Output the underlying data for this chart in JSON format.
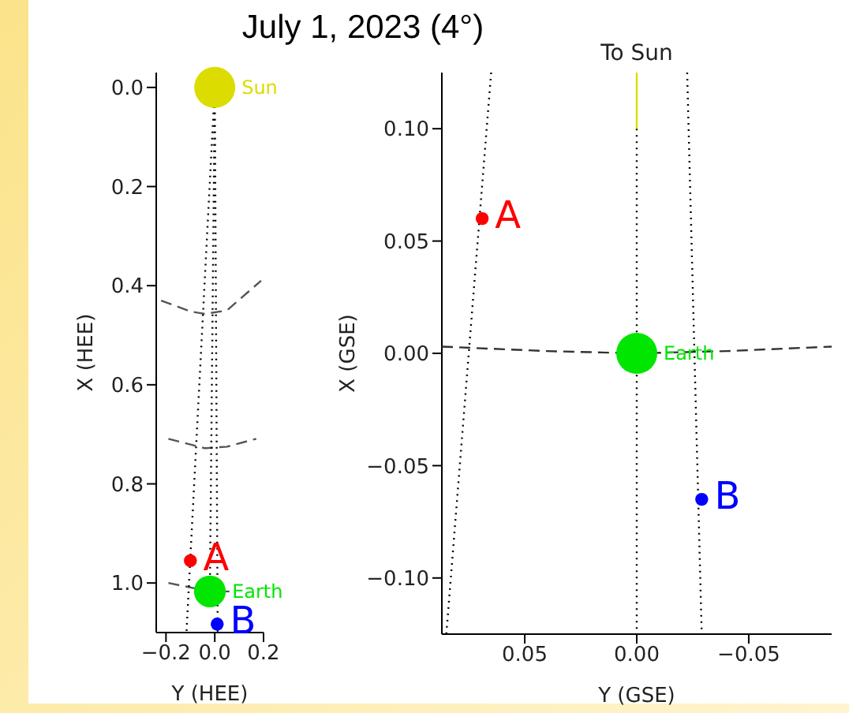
{
  "chart_data": [
    {
      "type": "bubble",
      "title": "July 1, 2023 (4°)",
      "xlabel": "Y (HEE)",
      "ylabel": "X (HEE)",
      "xlim": [
        -0.24,
        0.2
      ],
      "ylim": [
        1.1,
        -0.03
      ],
      "xticks": [
        {
          "value": -0.2,
          "label": "−0.2"
        },
        {
          "value": 0,
          "label": "0.0"
        },
        {
          "value": 0.2,
          "label": "0.2"
        }
      ],
      "yticks": [
        {
          "value": 0,
          "label": "0.0"
        },
        {
          "value": 0.2,
          "label": "0.2"
        },
        {
          "value": 0.4,
          "label": "0.4"
        },
        {
          "value": 0.6,
          "label": "0.6"
        },
        {
          "value": 0.8,
          "label": "0.8"
        },
        {
          "value": 1,
          "label": "1.0"
        }
      ],
      "series": [
        {
          "type": "line",
          "color": "#555555",
          "line_style": "dashed",
          "x": [
            -0.22,
            -0.1,
            -0.04,
            0.05,
            0.19
          ],
          "values": [
            0.43,
            0.452,
            0.457,
            0.45,
            0.39
          ]
        },
        {
          "type": "line",
          "color": "#555555",
          "line_style": "dashed",
          "x": [
            -0.19,
            -0.04,
            0.05,
            0.17
          ],
          "values": [
            0.709,
            0.728,
            0.725,
            0.709
          ]
        },
        {
          "type": "line",
          "color": "#555555",
          "line_style": "dashed",
          "x": [
            -0.19,
            -0.02,
            0.06
          ],
          "values": [
            1.0,
            1.017,
            1.017
          ]
        },
        {
          "type": "line",
          "color": "#000000",
          "line_style": "dotted",
          "x": [
            0,
            -0.116
          ],
          "values": [
            0,
            1.1
          ]
        },
        {
          "type": "line",
          "color": "#000000",
          "line_style": "dotted",
          "x": [
            0,
            -0.02
          ],
          "values": [
            0,
            1.017
          ]
        },
        {
          "type": "line",
          "color": "#000000",
          "line_style": "dotted",
          "x": [
            0,
            0.012
          ],
          "values": [
            0,
            1.1
          ]
        },
        {
          "name": "Sun",
          "color": "#dcdc00",
          "x": [
            0
          ],
          "values": [
            0
          ],
          "sizes": [
            1
          ]
        },
        {
          "name": "Earth",
          "color": "#00e600",
          "x": [
            -0.02
          ],
          "values": [
            1.017
          ],
          "sizes": [
            0.6
          ]
        },
        {
          "name": "A",
          "color": "#ff0000",
          "x": [
            -0.1
          ],
          "values": [
            0.955
          ],
          "sizes": [
            0.1
          ]
        },
        {
          "name": "B",
          "color": "#0000ff",
          "x": [
            0.01
          ],
          "values": [
            1.083
          ],
          "sizes": [
            0.1
          ]
        }
      ]
    },
    {
      "type": "bubble",
      "xlabel": "Y (GSE)",
      "ylabel": "X (GSE)",
      "annotations": [
        "To Sun"
      ],
      "xlim": [
        0.087,
        -0.087
      ],
      "ylim": [
        -0.125,
        0.125
      ],
      "xticks": [
        {
          "value": 0.05,
          "label": "0.05"
        },
        {
          "value": 0,
          "label": "0.00"
        },
        {
          "value": -0.05,
          "label": "−0.05"
        }
      ],
      "yticks": [
        {
          "value": 0.1,
          "label": "0.10"
        },
        {
          "value": 0.05,
          "label": "0.05"
        },
        {
          "value": 0,
          "label": "0.00"
        },
        {
          "value": -0.05,
          "label": "−0.05"
        },
        {
          "value": -0.1,
          "label": "−0.10"
        }
      ],
      "series": [
        {
          "type": "line",
          "color": "#333333",
          "line_style": "dashed",
          "x": [
            0.087,
            0.04,
            0,
            -0.04,
            -0.087
          ],
          "values": [
            0.003,
            0.001,
            0,
            0.001,
            0.003
          ]
        },
        {
          "type": "line",
          "color": "#000000",
          "line_style": "dotted",
          "x": [
            0.065,
            0.085
          ],
          "values": [
            0.125,
            -0.125
          ]
        },
        {
          "type": "line",
          "color": "#000000",
          "line_style": "dotted",
          "x": [
            -0.0225,
            -0.029
          ],
          "values": [
            0.125,
            -0.125
          ]
        },
        {
          "type": "line",
          "color": "#000000",
          "line_style": "dotted",
          "x": [
            0,
            0,
            0
          ],
          "values": [
            0.1,
            0,
            -0.125
          ]
        },
        {
          "type": "line",
          "color": "#dcdc00",
          "line_style": "solid",
          "x": [
            0,
            0
          ],
          "values": [
            0.1,
            0.125
          ]
        },
        {
          "name": "Earth",
          "color": "#00e600",
          "x": [
            0
          ],
          "values": [
            0
          ],
          "sizes": [
            1
          ]
        },
        {
          "name": "A",
          "color": "#ff0000",
          "x": [
            0.069
          ],
          "values": [
            0.06
          ],
          "sizes": [
            0.1
          ]
        },
        {
          "name": "B",
          "color": "#0000ff",
          "x": [
            -0.029
          ],
          "values": [
            -0.065
          ],
          "sizes": [
            0.1
          ]
        }
      ]
    }
  ]
}
